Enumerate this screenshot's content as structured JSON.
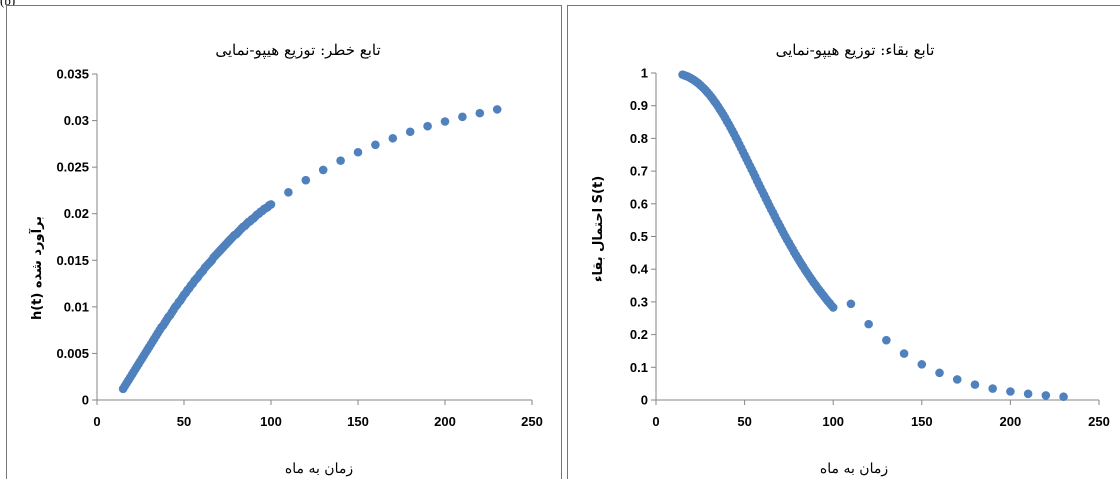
{
  "figure_label": "(b)",
  "chart_data": [
    {
      "type": "scatter",
      "title": "تابع خطر: توزیع هیپو-نمایی",
      "xlabel": "زمان به ماه",
      "ylabel": "h(t) برآورد شده",
      "xlim": [
        0,
        250
      ],
      "ylim": [
        0,
        0.035
      ],
      "x_ticks": [
        0,
        50,
        100,
        150,
        200,
        250
      ],
      "y_ticks": [
        0,
        0.005,
        0.01,
        0.015,
        0.02,
        0.025,
        0.03,
        0.035
      ],
      "x_tick_labels": [
        "0",
        "50",
        "100",
        "150",
        "200",
        "250"
      ],
      "y_tick_labels": [
        "0",
        "0.005",
        "0.01",
        "0.015",
        "0.02",
        "0.025",
        "0.03",
        "0.035"
      ],
      "grid": false,
      "marker_color": "#4f81bd",
      "series": [
        {
          "x": [
            15,
            16,
            17,
            18,
            19,
            20,
            21,
            22,
            23,
            24,
            25,
            26,
            27,
            28,
            29,
            30,
            31,
            32,
            33,
            34,
            35,
            36,
            37,
            38,
            39,
            40,
            41,
            42,
            43,
            44,
            45,
            46,
            47,
            48,
            49,
            50,
            51,
            52,
            53,
            54,
            55,
            56,
            57,
            58,
            59,
            60,
            61,
            62,
            63,
            64,
            65,
            66,
            67,
            68,
            69,
            70,
            71,
            72,
            73,
            74,
            75,
            76,
            77,
            78,
            79,
            80,
            81,
            82,
            83,
            84,
            85,
            86,
            87,
            88,
            89,
            90,
            91,
            92,
            93,
            94,
            95,
            96,
            97,
            98,
            99,
            100,
            110,
            120,
            130,
            140,
            150,
            160,
            170,
            180,
            190,
            200,
            210,
            220,
            230
          ],
          "y": [
            0.0012,
            0.0015,
            0.0018,
            0.0021,
            0.0024,
            0.0027,
            0.003,
            0.0033,
            0.0036,
            0.0039,
            0.0042,
            0.0045,
            0.0048,
            0.0051,
            0.0054,
            0.0057,
            0.006,
            0.0063,
            0.0066,
            0.0069,
            0.0072,
            0.0075,
            0.0078,
            0.008,
            0.0083,
            0.0086,
            0.0089,
            0.0091,
            0.0094,
            0.0097,
            0.01,
            0.0102,
            0.0105,
            0.0107,
            0.011,
            0.0113,
            0.0115,
            0.0118,
            0.012,
            0.0123,
            0.0125,
            0.0128,
            0.013,
            0.0132,
            0.0135,
            0.0137,
            0.0139,
            0.0142,
            0.0144,
            0.0146,
            0.0148,
            0.015,
            0.0153,
            0.0155,
            0.0157,
            0.0159,
            0.0161,
            0.0163,
            0.0165,
            0.0167,
            0.0169,
            0.0171,
            0.0173,
            0.0175,
            0.0177,
            0.0178,
            0.018,
            0.0182,
            0.0184,
            0.0186,
            0.0187,
            0.0189,
            0.0191,
            0.0192,
            0.0194,
            0.0195,
            0.0197,
            0.0199,
            0.02,
            0.0202,
            0.0203,
            0.0205,
            0.0206,
            0.0207,
            0.0209,
            0.021,
            0.0223,
            0.0236,
            0.0247,
            0.0257,
            0.0266,
            0.0274,
            0.0281,
            0.0288,
            0.0294,
            0.0299,
            0.0304,
            0.0308,
            0.0312
          ]
        }
      ]
    },
    {
      "type": "scatter",
      "title": "تابع بقاء: توزیع هیپو-نمایی",
      "xlabel": "زمان به ماه",
      "ylabel": "احتمال بقاء S(t)",
      "xlim": [
        0,
        250
      ],
      "ylim": [
        0,
        1
      ],
      "x_ticks": [
        0,
        50,
        100,
        150,
        200,
        250
      ],
      "y_ticks": [
        0,
        0.1,
        0.2,
        0.3,
        0.4,
        0.5,
        0.6,
        0.7,
        0.8,
        0.9,
        1
      ],
      "x_tick_labels": [
        "0",
        "50",
        "100",
        "150",
        "200",
        "250"
      ],
      "y_tick_labels": [
        "0",
        "0.1",
        "0.2",
        "0.3",
        "0.4",
        "0.5",
        "0.6",
        "0.7",
        "0.8",
        "0.9",
        "1"
      ],
      "grid": false,
      "marker_color": "#4f81bd",
      "series": [
        {
          "x": [
            15,
            16,
            17,
            18,
            19,
            20,
            21,
            22,
            23,
            24,
            25,
            26,
            27,
            28,
            29,
            30,
            31,
            32,
            33,
            34,
            35,
            36,
            37,
            38,
            39,
            40,
            41,
            42,
            43,
            44,
            45,
            46,
            47,
            48,
            49,
            50,
            51,
            52,
            53,
            54,
            55,
            56,
            57,
            58,
            59,
            60,
            61,
            62,
            63,
            64,
            65,
            66,
            67,
            68,
            69,
            70,
            71,
            72,
            73,
            74,
            75,
            76,
            77,
            78,
            79,
            80,
            81,
            82,
            83,
            84,
            85,
            86,
            87,
            88,
            89,
            90,
            91,
            92,
            93,
            94,
            95,
            96,
            97,
            98,
            99,
            100,
            110,
            120,
            130,
            140,
            150,
            160,
            170,
            180,
            190,
            200,
            210,
            220,
            230
          ],
          "y": [
            0.995,
            0.993,
            0.991,
            0.989,
            0.986,
            0.983,
            0.98,
            0.976,
            0.972,
            0.968,
            0.963,
            0.958,
            0.953,
            0.947,
            0.941,
            0.935,
            0.928,
            0.921,
            0.913,
            0.906,
            0.898,
            0.889,
            0.881,
            0.872,
            0.863,
            0.853,
            0.844,
            0.834,
            0.824,
            0.814,
            0.803,
            0.793,
            0.782,
            0.771,
            0.76,
            0.749,
            0.738,
            0.727,
            0.716,
            0.705,
            0.694,
            0.683,
            0.671,
            0.66,
            0.649,
            0.638,
            0.627,
            0.616,
            0.605,
            0.594,
            0.583,
            0.573,
            0.562,
            0.551,
            0.541,
            0.531,
            0.52,
            0.51,
            0.5,
            0.49,
            0.481,
            0.471,
            0.462,
            0.452,
            0.443,
            0.434,
            0.425,
            0.416,
            0.408,
            0.399,
            0.391,
            0.383,
            0.375,
            0.367,
            0.359,
            0.352,
            0.344,
            0.337,
            0.33,
            0.323,
            0.316,
            0.309,
            0.302,
            0.296,
            0.289,
            0.283,
            0.294,
            0.232,
            0.183,
            0.142,
            0.109,
            0.083,
            0.063,
            0.047,
            0.035,
            0.026,
            0.019,
            0.014,
            0.01
          ]
        }
      ]
    }
  ]
}
